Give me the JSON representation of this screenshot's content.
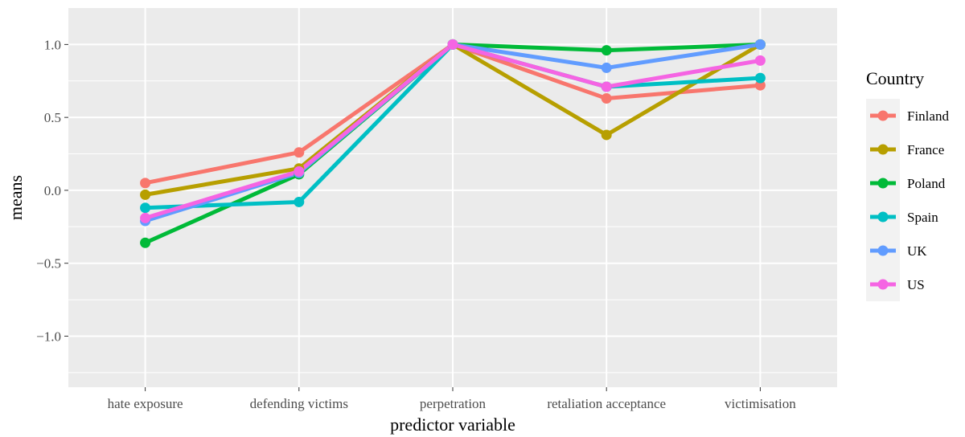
{
  "chart_data": {
    "type": "line",
    "xlabel": "predictor variable",
    "ylabel": "means",
    "categories": [
      "hate exposure",
      "defending victims",
      "perpetration",
      "retaliation acceptance",
      "victimisation"
    ],
    "ylim": [
      -1.35,
      1.25
    ],
    "yticks": [
      -1.0,
      -0.5,
      0.0,
      0.5,
      1.0
    ],
    "ytick_labels": [
      "−1.0",
      "−0.5",
      "0.0",
      "0.5",
      "1.0"
    ],
    "grid": true,
    "legend": {
      "title": "Country",
      "position": "right"
    },
    "series": [
      {
        "name": "Finland",
        "color": "#F8766D",
        "values": [
          0.05,
          0.26,
          1.0,
          0.63,
          0.72
        ]
      },
      {
        "name": "France",
        "color": "#B79F00",
        "values": [
          -0.03,
          0.15,
          1.0,
          0.38,
          1.0
        ]
      },
      {
        "name": "Poland",
        "color": "#00BA38",
        "values": [
          -0.36,
          0.11,
          1.0,
          0.96,
          1.0
        ]
      },
      {
        "name": "Spain",
        "color": "#00BFC4",
        "values": [
          -0.12,
          -0.08,
          1.0,
          0.71,
          0.77
        ]
      },
      {
        "name": "UK",
        "color": "#619CFF",
        "values": [
          -0.21,
          0.12,
          1.0,
          0.84,
          1.0
        ]
      },
      {
        "name": "US",
        "color": "#F564E3",
        "values": [
          -0.19,
          0.13,
          1.0,
          0.71,
          0.89
        ]
      }
    ]
  }
}
